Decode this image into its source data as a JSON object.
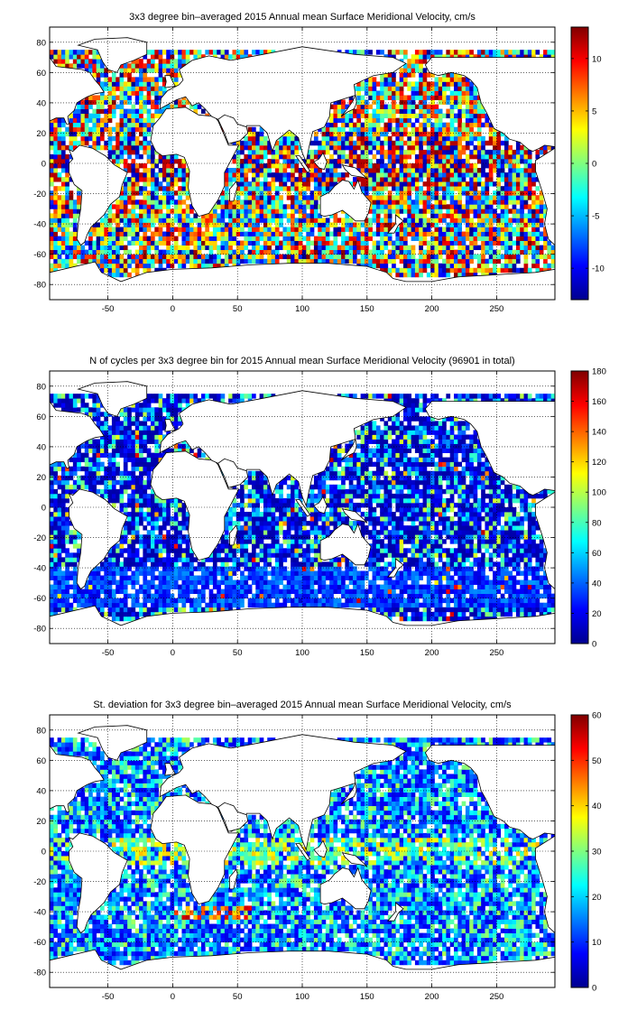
{
  "chart_data": [
    {
      "type": "heatmap",
      "title": "3x3 degree bin–averaged 2015 Annual mean Surface Meridional Velocity, cm/s",
      "xlim": [
        -95,
        295
      ],
      "ylim": [
        -90,
        90
      ],
      "xticks": [
        -50,
        0,
        50,
        100,
        150,
        200,
        250
      ],
      "yticks": [
        80,
        60,
        40,
        20,
        0,
        -20,
        -40,
        -60,
        -80
      ],
      "grid": true,
      "bin_size_deg": 3,
      "colormap": "jet",
      "colorbar": {
        "range": [
          -13,
          13
        ],
        "ticks": [
          10,
          5,
          0,
          -5,
          -10
        ]
      }
    },
    {
      "type": "heatmap",
      "title": "N of cycles per 3x3 degree bin for 2015 Annual mean Surface Meridional Velocity (96901 in total)",
      "xlim": [
        -95,
        295
      ],
      "ylim": [
        -90,
        90
      ],
      "xticks": [
        -50,
        0,
        50,
        100,
        150,
        200,
        250
      ],
      "yticks": [
        80,
        60,
        40,
        20,
        0,
        -20,
        -40,
        -60,
        -80
      ],
      "grid": true,
      "bin_size_deg": 3,
      "colormap": "jet",
      "colorbar": {
        "range": [
          0,
          180
        ],
        "ticks": [
          180,
          160,
          140,
          120,
          100,
          80,
          60,
          40,
          20,
          0
        ]
      }
    },
    {
      "type": "heatmap",
      "title": "St. deviation for 3x3 degree bin–averaged 2015 Annual mean Surface Meridional Velocity, cm/s",
      "xlim": [
        -95,
        295
      ],
      "ylim": [
        -90,
        90
      ],
      "xticks": [
        -50,
        0,
        50,
        100,
        150,
        200,
        250
      ],
      "yticks": [
        80,
        60,
        40,
        20,
        0,
        -20,
        -40,
        -60,
        -80
      ],
      "grid": true,
      "bin_size_deg": 3,
      "colormap": "jet",
      "colorbar": {
        "range": [
          0,
          60
        ],
        "ticks": [
          60,
          50,
          40,
          30,
          20,
          10,
          0
        ]
      }
    }
  ]
}
